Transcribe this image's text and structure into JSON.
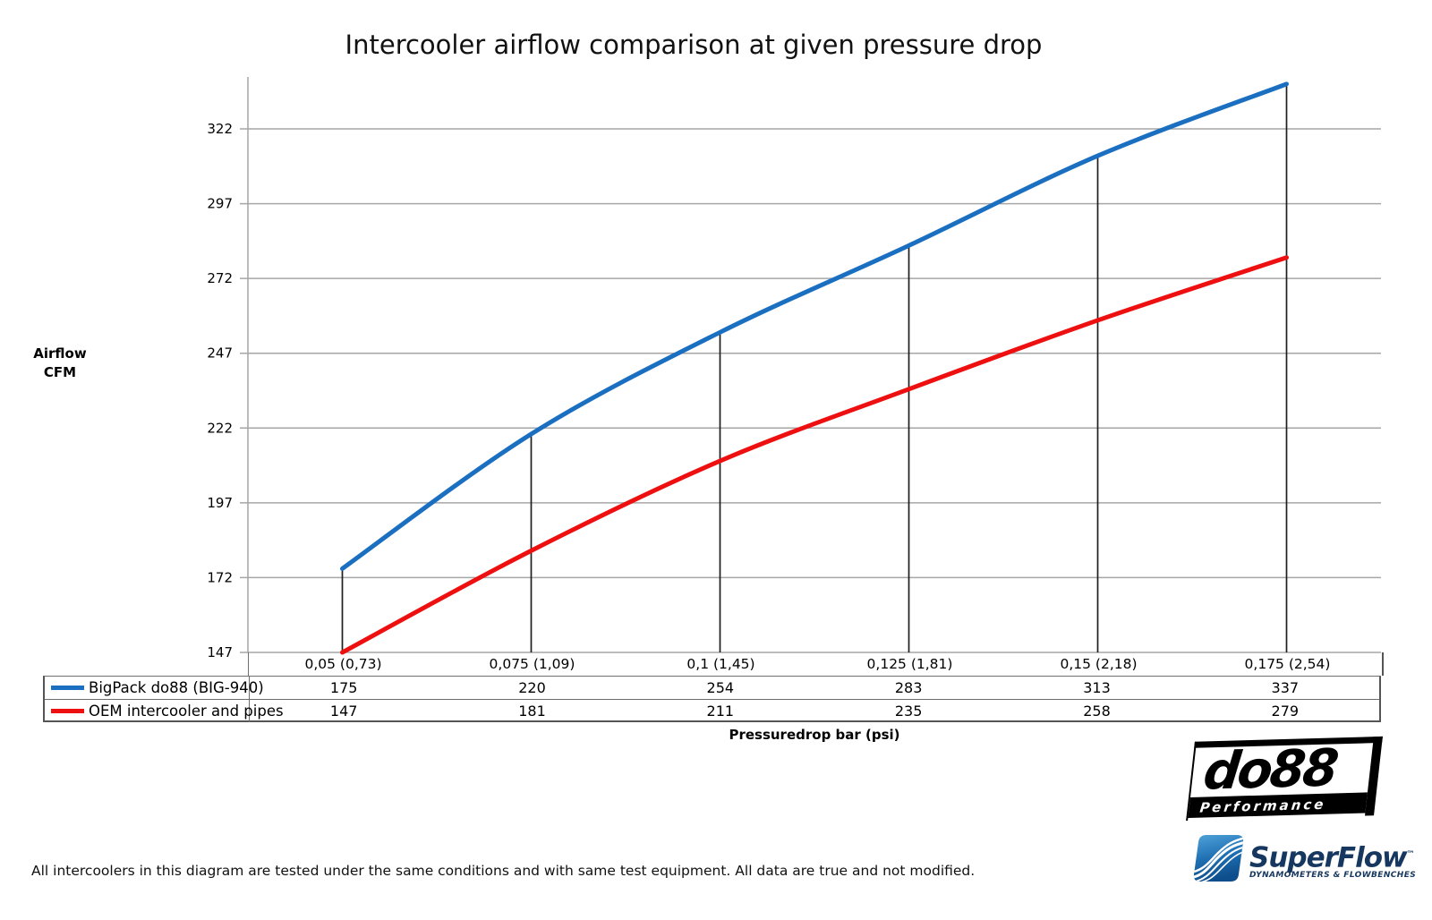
{
  "title": "Intercooler airflow comparison at given pressure drop",
  "y_axis": {
    "label_line1": "Airflow",
    "label_line2": "CFM",
    "ticks": [
      147,
      172,
      197,
      222,
      247,
      272,
      297,
      322
    ]
  },
  "x_axis": {
    "title": "Pressuredrop bar (psi)"
  },
  "chart_data": {
    "type": "line",
    "title": "Intercooler airflow comparison at given pressure drop",
    "xlabel": "Pressuredrop bar (psi)",
    "ylabel": "Airflow CFM",
    "categories": [
      "0,05 (0,73)",
      "0,075 (1,09)",
      "0,1 (1,45)",
      "0,125 (1,81)",
      "0,15 (2,18)",
      "0,175 (2,54)"
    ],
    "series": [
      {
        "name": "BigPack do88 (BIG-940)",
        "color": "#1B6FC1",
        "values": [
          175,
          220,
          254,
          283,
          313,
          337
        ]
      },
      {
        "name": "OEM intercooler and pipes",
        "color": "#EE1010",
        "values": [
          147,
          181,
          211,
          235,
          258,
          279
        ]
      }
    ],
    "y_ticks": [
      147,
      172,
      197,
      222,
      247,
      272,
      297,
      322
    ],
    "ylim": [
      147,
      339
    ],
    "grid": true,
    "legend_position": "table-left",
    "drop_lines": true,
    "grid_color": "#A6A6A6",
    "drop_line_color": "#1F1F1F"
  },
  "footer": {
    "disclaimer": "All intercoolers in this diagram are tested under the same conditions and with same test equipment. All data are true and not modified."
  },
  "logos": {
    "do88": {
      "name": "do88",
      "tagline": "Performance"
    },
    "superflow": {
      "name": "SuperFlow",
      "tm": "™",
      "tagline": "DYNAMOMETERS & FLOWBENCHES"
    }
  }
}
